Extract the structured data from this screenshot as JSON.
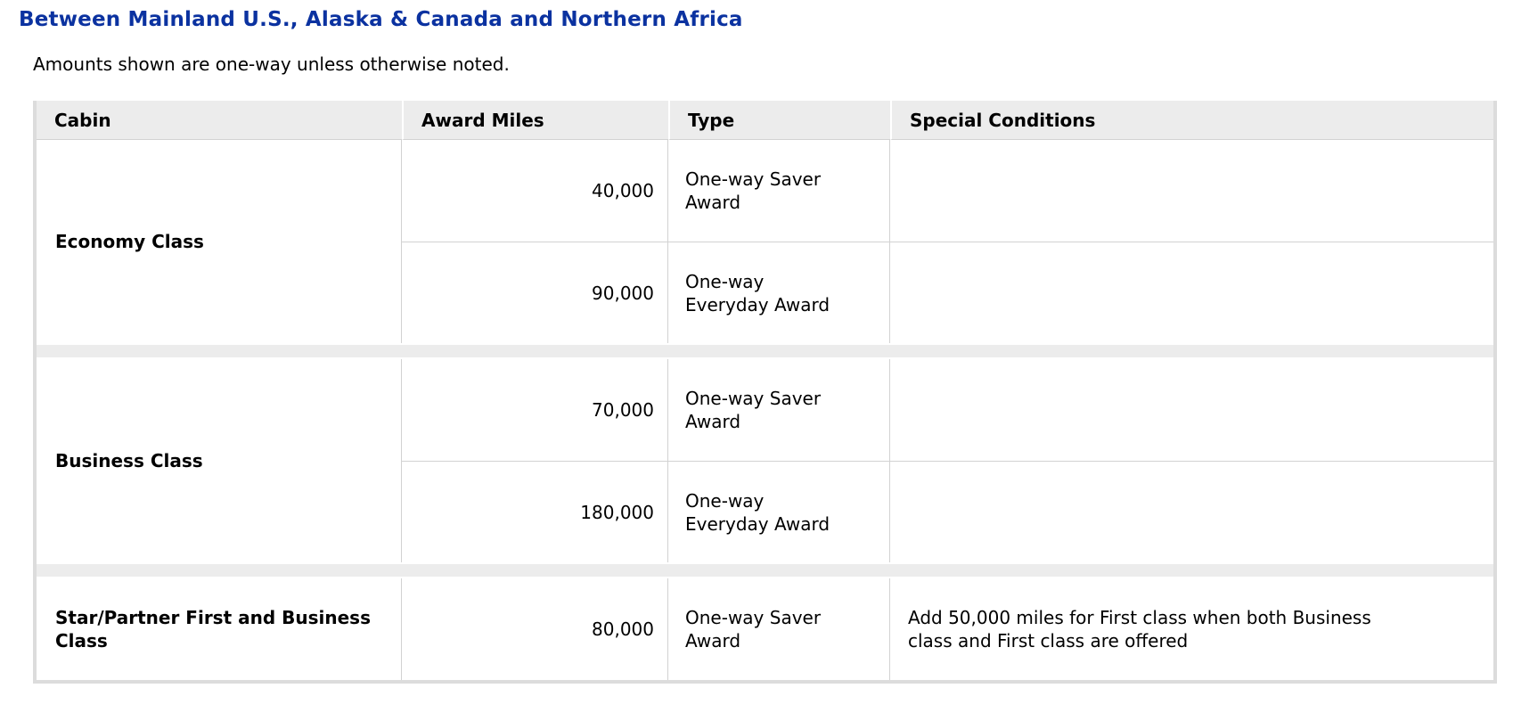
{
  "page": {
    "title": "Between Mainland U.S., Alaska & Canada and Northern Africa",
    "subtitle": "Amounts shown are one-way unless otherwise noted."
  },
  "table": {
    "columns": [
      "Cabin",
      "Award Miles",
      "Type",
      "Special Conditions"
    ],
    "sections": [
      {
        "cabin": "Economy Class",
        "rows": [
          {
            "award_miles": "40,000",
            "type": "One-way Saver Award",
            "special_conditions": ""
          },
          {
            "award_miles": "90,000",
            "type": "One-way Everyday Award",
            "special_conditions": ""
          }
        ]
      },
      {
        "cabin": "Business Class",
        "rows": [
          {
            "award_miles": "70,000",
            "type": "One-way Saver Award",
            "special_conditions": ""
          },
          {
            "award_miles": "180,000",
            "type": "One-way Everyday Award",
            "special_conditions": ""
          }
        ]
      },
      {
        "cabin": "Star/Partner First and Business Class",
        "rows": [
          {
            "award_miles": "80,000",
            "type": "One-way Saver Award",
            "special_conditions": "Add 50,000 miles for First class when both Business class and First class are offered"
          }
        ]
      }
    ]
  },
  "colors": {
    "heading": "#0b32a0",
    "header_bg": "#ececec",
    "frame": "#dcdcdc",
    "cell_line": "#d2d2d2",
    "text": "#000000"
  }
}
